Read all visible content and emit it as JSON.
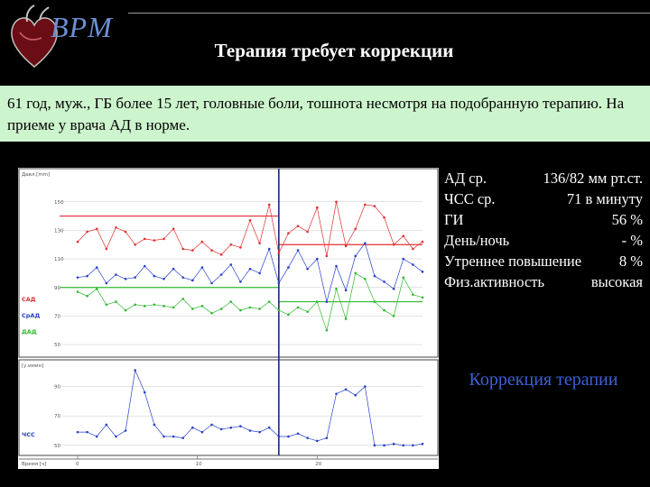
{
  "header": {
    "logo_text": "BPM",
    "logo_icon": "heart-icon",
    "title": "Терапия требует коррекции"
  },
  "case": {
    "text": "61 год, муж., ГБ более 15 лет, головные боли, тошнота несмотря на подобранную терапию. На приеме у врача АД в норме."
  },
  "stats": [
    {
      "label": "АД ср.",
      "value": "136/82 мм рт.ст."
    },
    {
      "label": "ЧСС ср.",
      "value": "71 в минуту"
    },
    {
      "label": "ГИ",
      "value": "56 %"
    },
    {
      "label": "День/ночь",
      "value": "- %"
    },
    {
      "label": "Утреннее повышение",
      "value": "8 %"
    },
    {
      "label": "Физ.активность",
      "value": "высокая"
    }
  ],
  "correction_label": "Коррекция терапии",
  "colors": {
    "background": "#000000",
    "case_box": "#cdf5cd",
    "sad": "#e03030",
    "srad": "#2840c8",
    "dad": "#30b830",
    "hr": "#2840c8",
    "correction": "#3e5fd6",
    "logo": "#6d8fd0"
  },
  "chart_data": [
    {
      "type": "line",
      "ylabel": "Давл.[mm]",
      "ylim": [
        45,
        165
      ],
      "yticks": [
        50,
        70,
        90,
        110,
        130,
        150
      ],
      "legend": [
        "САД",
        "СрАД",
        "ДАД"
      ],
      "legend_placement": "left",
      "thresholds": [
        {
          "series": "САД",
          "day": 140,
          "night": 120
        },
        {
          "series": "ДАД",
          "day": 90,
          "night": 80
        }
      ],
      "night_divider_x": 16.8,
      "series": [
        {
          "name": "САД",
          "x": [
            0,
            0.8,
            1.6,
            2.4,
            3.2,
            4,
            4.8,
            5.6,
            6.4,
            7.2,
            8,
            8.8,
            9.6,
            10.4,
            11.2,
            12,
            12.8,
            13.6,
            14.4,
            15.2,
            16,
            16.8,
            17.6,
            18.4,
            19.2,
            20,
            20.8,
            21.6,
            22.4,
            23.2,
            24,
            24.8,
            25.6,
            26.4,
            27.2,
            28,
            28.8
          ],
          "values": [
            122,
            129,
            131,
            117,
            132,
            129,
            120,
            124,
            123,
            124,
            131,
            117,
            116,
            122,
            116,
            113,
            120,
            118,
            137,
            121,
            148,
            114,
            128,
            133,
            129,
            146,
            112,
            150,
            119,
            131,
            148,
            147,
            139,
            120,
            126,
            117,
            122
          ]
        },
        {
          "name": "СрАД",
          "x": [
            0,
            0.8,
            1.6,
            2.4,
            3.2,
            4,
            4.8,
            5.6,
            6.4,
            7.2,
            8,
            8.8,
            9.6,
            10.4,
            11.2,
            12,
            12.8,
            13.6,
            14.4,
            15.2,
            16,
            16.8,
            17.6,
            18.4,
            19.2,
            20,
            20.8,
            21.6,
            22.4,
            23.2,
            24,
            24.8,
            25.6,
            26.4,
            27.2,
            28,
            28.8
          ],
          "values": [
            97,
            98,
            104,
            93,
            99,
            96,
            97,
            105,
            98,
            96,
            103,
            97,
            95,
            104,
            93,
            99,
            106,
            94,
            103,
            100,
            117,
            93,
            104,
            116,
            103,
            110,
            80,
            105,
            88,
            112,
            121,
            98,
            94,
            89,
            110,
            106,
            101
          ]
        },
        {
          "name": "ДАД",
          "x": [
            0,
            0.8,
            1.6,
            2.4,
            3.2,
            4,
            4.8,
            5.6,
            6.4,
            7.2,
            8,
            8.8,
            9.6,
            10.4,
            11.2,
            12,
            12.8,
            13.6,
            14.4,
            15.2,
            16,
            16.8,
            17.6,
            18.4,
            19.2,
            20,
            20.8,
            21.6,
            22.4,
            23.2,
            24,
            24.8,
            25.6,
            26.4,
            27.2,
            28,
            28.8
          ],
          "values": [
            87,
            84,
            89,
            78,
            80,
            74,
            78,
            77,
            78,
            77,
            76,
            82,
            75,
            77,
            72,
            75,
            80,
            74,
            76,
            75,
            80,
            74,
            71,
            76,
            73,
            80,
            60,
            89,
            68,
            100,
            96,
            80,
            74,
            70,
            97,
            85,
            83
          ]
        }
      ]
    },
    {
      "type": "line",
      "ylabel": "[у.имин]",
      "ylim": [
        45,
        105
      ],
      "yticks": [
        50,
        70,
        90
      ],
      "xlabel": "Время [ч]",
      "xticks": [
        0,
        10,
        20
      ],
      "legend": [
        "ЧСС"
      ],
      "legend_placement": "left",
      "series": [
        {
          "name": "ЧСС",
          "x": [
            0,
            0.8,
            1.6,
            2.4,
            3.2,
            4,
            4.8,
            5.6,
            6.4,
            7.2,
            8,
            8.8,
            9.6,
            10.4,
            11.2,
            12,
            12.8,
            13.6,
            14.4,
            15.2,
            16,
            16.8,
            17.6,
            18.4,
            19.2,
            20,
            20.8,
            21.6,
            22.4,
            23.2,
            24,
            24.8,
            25.6,
            26.4,
            27.2,
            28,
            28.8
          ],
          "values": [
            59,
            59,
            56,
            64,
            56,
            60,
            101,
            86,
            64,
            56,
            56,
            55,
            62,
            59,
            64,
            61,
            62,
            63,
            60,
            59,
            62,
            56,
            56,
            58,
            55,
            53,
            55,
            85,
            88,
            84,
            90,
            50,
            50,
            51,
            50,
            50,
            51
          ]
        }
      ]
    }
  ]
}
